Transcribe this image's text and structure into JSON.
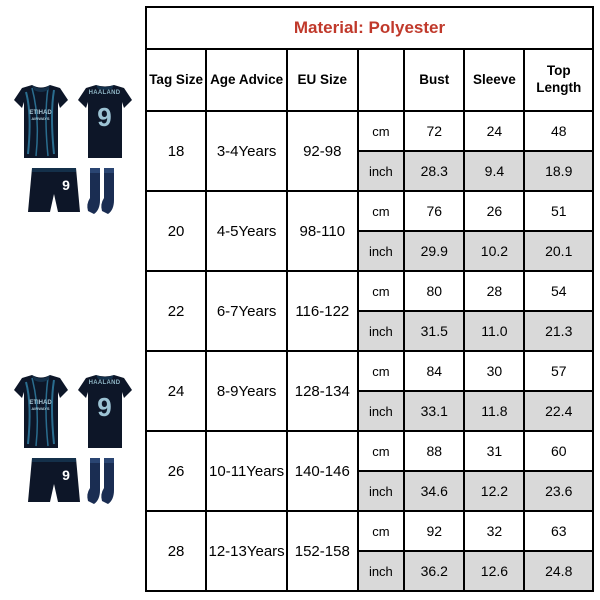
{
  "material_label": "Material:",
  "material_value": "Polyester",
  "product": {
    "player_name": "HAALAND",
    "player_number": "9",
    "sponsor_top": "ETIHAD",
    "sponsor_bottom": "AIRWAYS"
  },
  "colors": {
    "jersey_base": "#0d1628",
    "jersey_accent": "#2a6d8f",
    "text_accent": "#9cc3d4",
    "socks_color": "#1a2d52",
    "header_text": "#c0392b",
    "shade_bg": "#d9d9d9",
    "border": "#000000"
  },
  "table": {
    "headers": {
      "tag": "Tag Size",
      "age": "Age Advice",
      "eu": "EU Size",
      "unit_blank": "",
      "bust": "Bust",
      "sleeve": "Sleeve",
      "top": "Top Length"
    },
    "unit_cm": "cm",
    "unit_inch": "inch",
    "rows": [
      {
        "tag": "18",
        "age": "3-4Years",
        "eu": "92-98",
        "cm": {
          "bust": "72",
          "sleeve": "24",
          "top": "48"
        },
        "inch": {
          "bust": "28.3",
          "sleeve": "9.4",
          "top": "18.9"
        }
      },
      {
        "tag": "20",
        "age": "4-5Years",
        "eu": "98-110",
        "cm": {
          "bust": "76",
          "sleeve": "26",
          "top": "51"
        },
        "inch": {
          "bust": "29.9",
          "sleeve": "10.2",
          "top": "20.1"
        }
      },
      {
        "tag": "22",
        "age": "6-7Years",
        "eu": "116-122",
        "cm": {
          "bust": "80",
          "sleeve": "28",
          "top": "54"
        },
        "inch": {
          "bust": "31.5",
          "sleeve": "11.0",
          "top": "21.3"
        }
      },
      {
        "tag": "24",
        "age": "8-9Years",
        "eu": "128-134",
        "cm": {
          "bust": "84",
          "sleeve": "30",
          "top": "57"
        },
        "inch": {
          "bust": "33.1",
          "sleeve": "11.8",
          "top": "22.4"
        }
      },
      {
        "tag": "26",
        "age": "10-11Years",
        "eu": "140-146",
        "cm": {
          "bust": "88",
          "sleeve": "31",
          "top": "60"
        },
        "inch": {
          "bust": "34.6",
          "sleeve": "12.2",
          "top": "23.6"
        }
      },
      {
        "tag": "28",
        "age": "12-13Years",
        "eu": "152-158",
        "cm": {
          "bust": "92",
          "sleeve": "32",
          "top": "63"
        },
        "inch": {
          "bust": "36.2",
          "sleeve": "12.6",
          "top": "24.8"
        }
      }
    ]
  }
}
